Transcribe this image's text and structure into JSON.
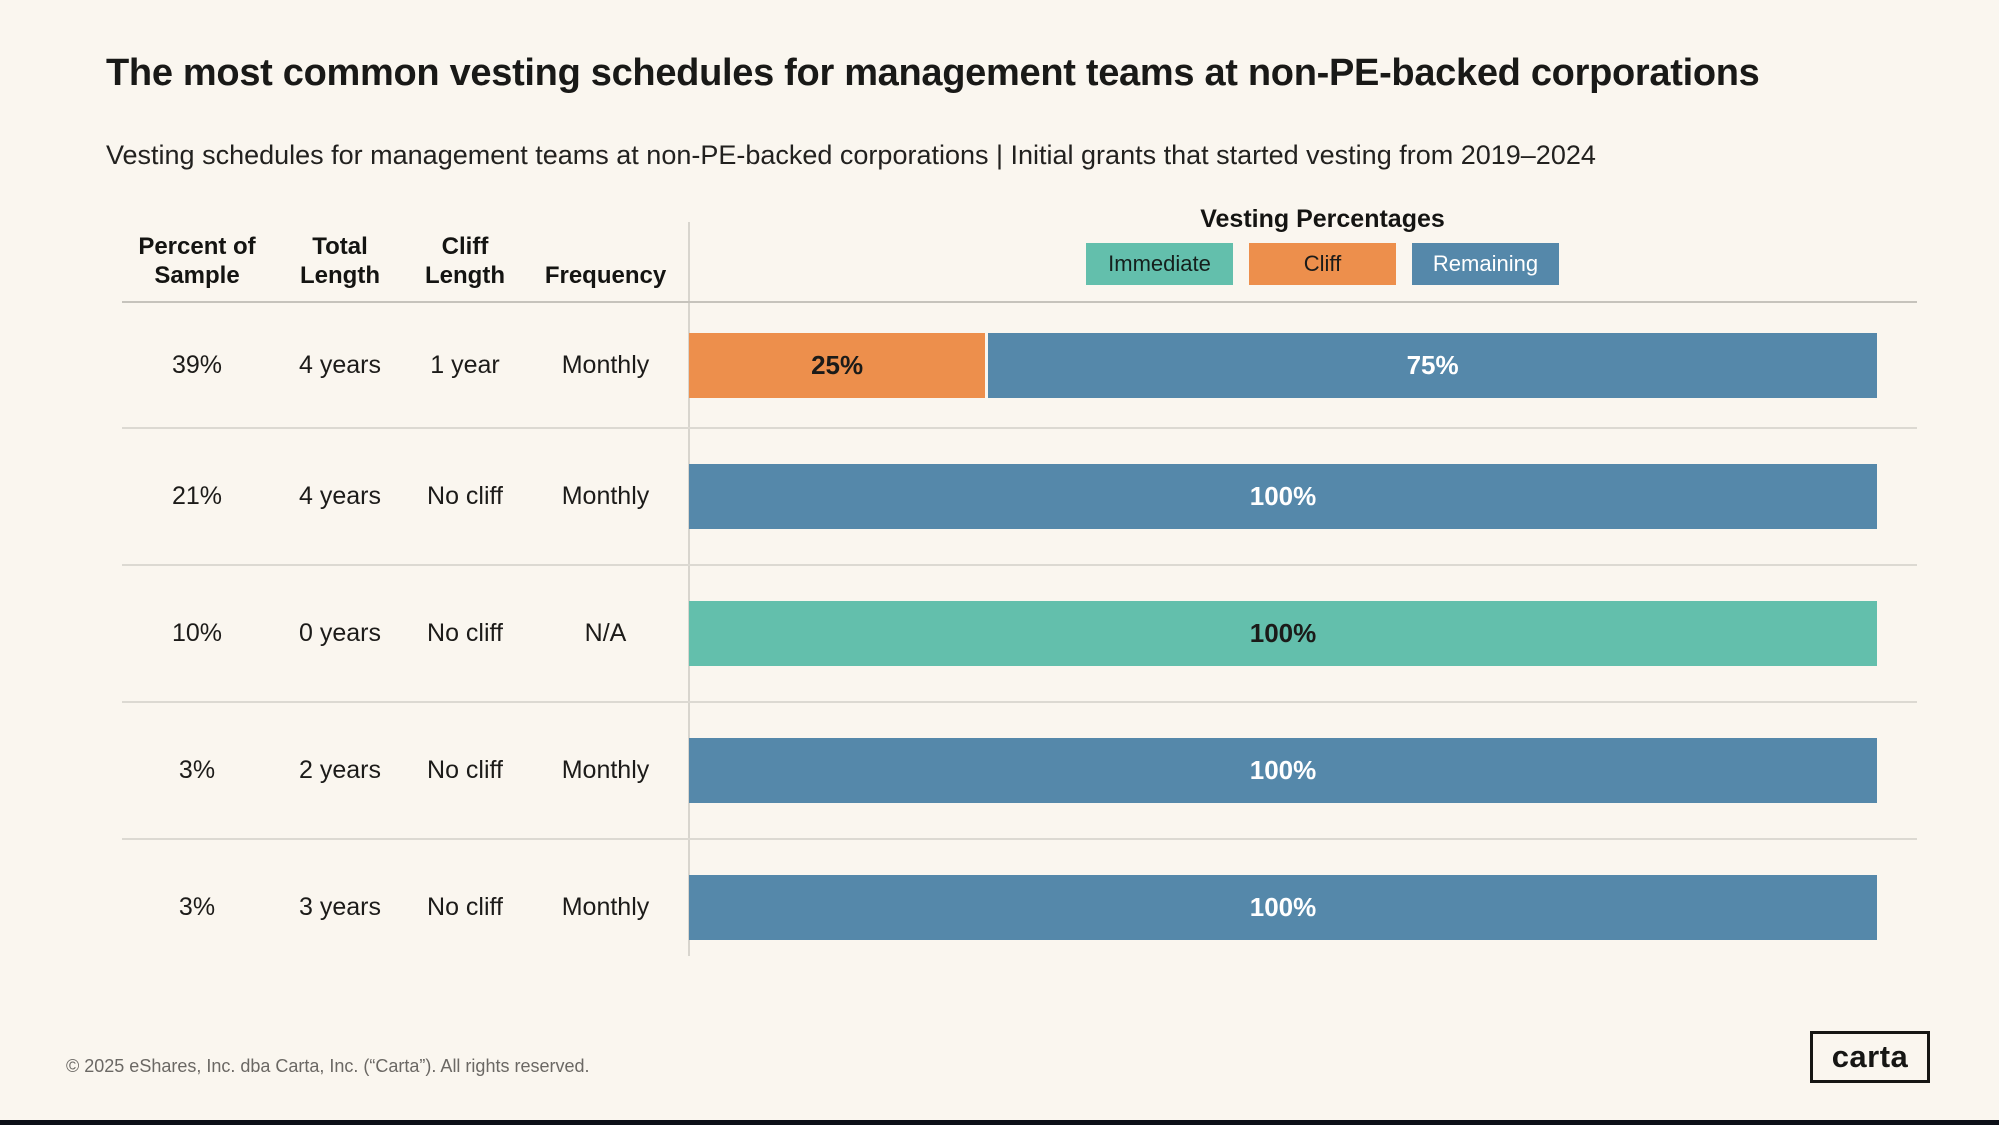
{
  "page": {
    "title": "The most common vesting schedules for management teams at non-PE-backed corporations",
    "subtitle": "Vesting schedules for management teams at non-PE-backed corporations | Initial grants that started vesting from 2019–2024",
    "footer": "© 2025 eShares, Inc. dba Carta, Inc. (“Carta”). All rights reserved.",
    "logo_text": "carta"
  },
  "colors": {
    "background": "#faf6ef",
    "immediate": "#63bfac",
    "cliff": "#ed8f4c",
    "remaining": "#5588aa",
    "dark_text": "#1b1b19",
    "light_text": "#ffffff"
  },
  "legend": {
    "title": "Vesting Percentages",
    "items": [
      {
        "label": "Immediate",
        "color": "#63bfac",
        "text_color": "#15201d"
      },
      {
        "label": "Cliff",
        "color": "#ed8f4c",
        "text_color": "#1b1b19"
      },
      {
        "label": "Remaining",
        "color": "#5588aa",
        "text_color": "#ffffff"
      }
    ]
  },
  "table": {
    "headers": [
      "Percent of\nSample",
      "Total\nLength",
      "Cliff\nLength",
      "Frequency"
    ]
  },
  "chart_data": {
    "type": "bar",
    "orientation": "horizontal",
    "stacked": true,
    "legend_title": "Vesting Percentages",
    "series_names": [
      "Immediate",
      "Cliff",
      "Remaining"
    ],
    "columns": [
      "Percent of Sample",
      "Total Length",
      "Cliff Length",
      "Frequency"
    ],
    "xlim": [
      0,
      100
    ],
    "rows": [
      {
        "percent_of_sample": "39%",
        "total_length": "4 years",
        "cliff_length": "1 year",
        "frequency": "Monthly",
        "segments": [
          {
            "series": "Cliff",
            "value": 25,
            "label": "25%"
          },
          {
            "series": "Remaining",
            "value": 75,
            "label": "75%"
          }
        ]
      },
      {
        "percent_of_sample": "21%",
        "total_length": "4 years",
        "cliff_length": "No cliff",
        "frequency": "Monthly",
        "segments": [
          {
            "series": "Remaining",
            "value": 100,
            "label": "100%"
          }
        ]
      },
      {
        "percent_of_sample": "10%",
        "total_length": "0 years",
        "cliff_length": "No cliff",
        "frequency": "N/A",
        "segments": [
          {
            "series": "Immediate",
            "value": 100,
            "label": "100%"
          }
        ]
      },
      {
        "percent_of_sample": "3%",
        "total_length": "2 years",
        "cliff_length": "No cliff",
        "frequency": "Monthly",
        "segments": [
          {
            "series": "Remaining",
            "value": 100,
            "label": "100%"
          }
        ]
      },
      {
        "percent_of_sample": "3%",
        "total_length": "3 years",
        "cliff_length": "No cliff",
        "frequency": "Monthly",
        "segments": [
          {
            "series": "Remaining",
            "value": 100,
            "label": "100%"
          }
        ]
      }
    ]
  }
}
